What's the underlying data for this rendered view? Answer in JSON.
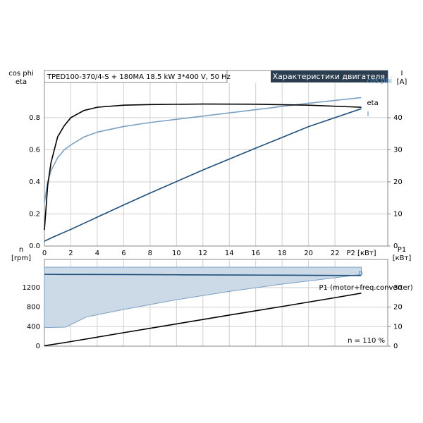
{
  "chart_data": [
    {
      "type": "line",
      "title": "TPED100-370/4-S + 180MA   18.5 kW   3*400 V, 50 Hz",
      "subtitle": "Характеристики двигателя",
      "y_label": [
        "cos phi",
        "eta"
      ],
      "y2_label": [
        "I",
        "[A]"
      ],
      "x_label": "P2 [кВт]",
      "x": [
        0,
        0.25,
        0.5,
        1,
        1.5,
        2,
        3,
        4,
        6,
        8,
        12,
        16,
        20,
        24
      ],
      "series": [
        {
          "name": "cos phi",
          "color": "#7aa0c4",
          "values": [
            0.27,
            0.4,
            0.47,
            0.55,
            0.6,
            0.63,
            0.68,
            0.71,
            0.745,
            0.77,
            0.81,
            0.85,
            0.89,
            0.925
          ]
        },
        {
          "name": "eta",
          "color": "#000000",
          "values": [
            0.1,
            0.38,
            0.52,
            0.68,
            0.75,
            0.8,
            0.845,
            0.865,
            0.878,
            0.882,
            0.885,
            0.884,
            0.878,
            0.865
          ]
        },
        {
          "name": "I",
          "color": "#1f4e79",
          "axis": "y2",
          "values": [
            1.5,
            2,
            2.5,
            3.4,
            4.3,
            5.2,
            7.1,
            9,
            12.8,
            16.5,
            23.7,
            30.5,
            37.2,
            42.8
          ]
        }
      ],
      "xlim": [
        0,
        26
      ],
      "xticks": [
        0,
        2,
        4,
        6,
        8,
        10,
        12,
        14,
        16,
        18,
        20,
        22
      ],
      "ylim": [
        0,
        1.015
      ],
      "yticks": [
        {
          "value": 0,
          "label": "0.0"
        },
        0.2,
        0.4,
        0.6,
        0.8
      ],
      "y2lim": [
        0,
        50.75
      ],
      "y2ticks": [
        0,
        10,
        20,
        30,
        40
      ],
      "grid": true
    },
    {
      "type": "line",
      "y_label": [
        "n",
        "[rpm]"
      ],
      "y2_label": [
        "P1",
        "[кВт]"
      ],
      "annotation": "n = 110 %",
      "x": [
        0,
        1.6,
        3.2,
        6,
        10,
        14,
        18,
        22,
        24
      ],
      "range": {
        "color": "#ccd9e6",
        "upper": [
          1617,
          1617,
          1617,
          1617,
          1617,
          1617,
          1617,
          1617,
          1617
        ],
        "lower": [
          380,
          390,
          600,
          750,
          950,
          1120,
          1270,
          1400,
          1470
        ]
      },
      "series": [
        {
          "name": "n",
          "color": "#1f4e79",
          "values": [
            1470,
            1468,
            1467,
            1465,
            1461,
            1457,
            1453,
            1448,
            1445
          ]
        },
        {
          "name": "P1 (motor+freq.converter)",
          "color": "#000000",
          "axis": "y2",
          "values": [
            0.2,
            1.9,
            3.7,
            6.9,
            11.4,
            15.9,
            20.3,
            24.8,
            27.1
          ]
        }
      ],
      "xlim": [
        0,
        26
      ],
      "xticks": [
        0,
        2,
        4,
        6,
        8,
        10,
        12,
        14,
        16,
        18,
        20,
        22
      ],
      "ylim": [
        0,
        1775
      ],
      "yticks": [
        0,
        400,
        800,
        1200
      ],
      "y2lim": [
        0,
        44.375
      ],
      "y2ticks": [
        0,
        10,
        20,
        30
      ],
      "grid": true
    }
  ]
}
